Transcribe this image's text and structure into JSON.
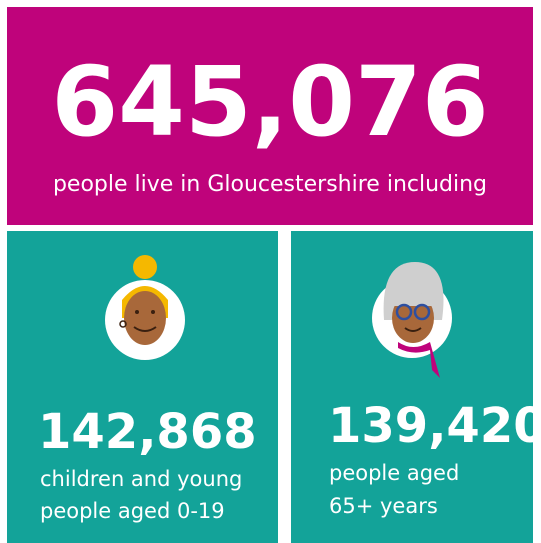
{
  "headline": {
    "value": "645,076",
    "caption": "people live in Gloucestershire including"
  },
  "stats": [
    {
      "value": "142,868",
      "lines": [
        "children and young",
        "people aged 0-19"
      ]
    },
    {
      "value": "139,420",
      "lines": [
        "people aged",
        "65+ years"
      ]
    }
  ]
}
